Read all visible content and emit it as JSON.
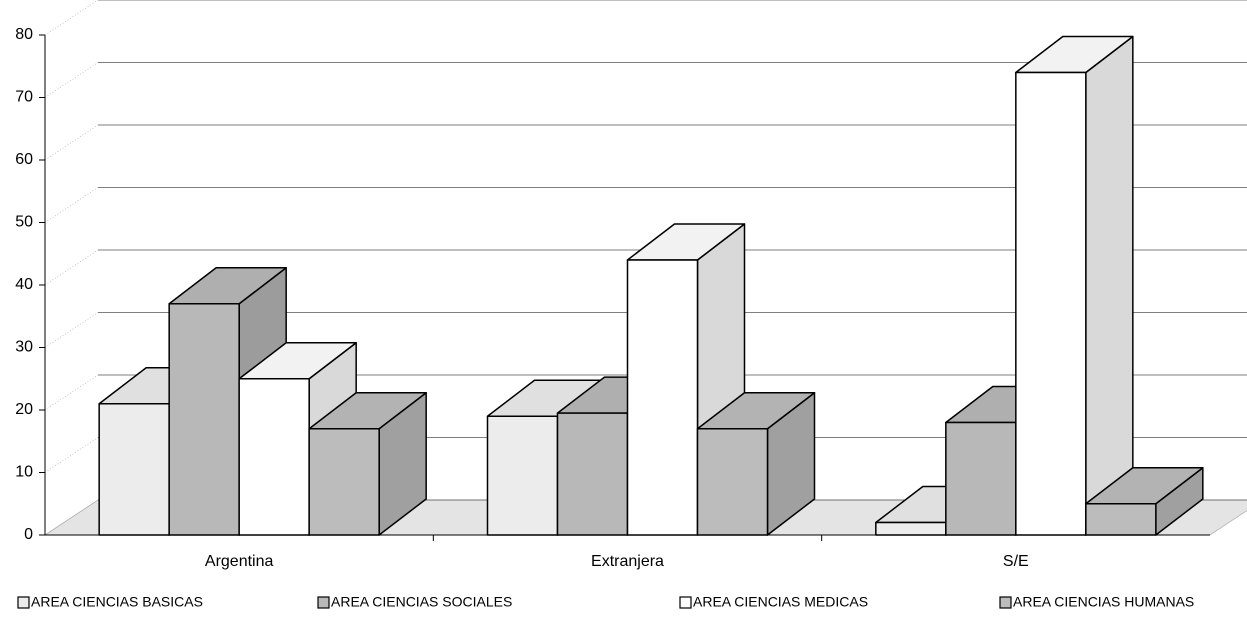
{
  "chart_data": {
    "type": "bar3d",
    "categories": [
      "Argentina",
      "Extranjera",
      "S/E"
    ],
    "series": [
      {
        "name": "AREA CIENCIAS BASICAS",
        "color": "#ececec",
        "values": [
          21,
          19,
          2
        ]
      },
      {
        "name": "AREA CIENCIAS SOCIALES",
        "color": "#b8b8b8",
        "values": [
          37,
          19.5,
          18
        ]
      },
      {
        "name": "AREA CIENCIAS MEDICAS",
        "color": "#ffffff",
        "values": [
          25,
          44,
          74
        ]
      },
      {
        "name": "AREA CIENCIAS HUMANAS",
        "color": "#bcbcbc",
        "values": [
          17,
          17,
          5
        ]
      }
    ],
    "ylim": [
      0,
      80
    ],
    "yticks": [
      0,
      10,
      20,
      30,
      40,
      50,
      60,
      70,
      80
    ],
    "grid": true,
    "legend": "bottom"
  }
}
